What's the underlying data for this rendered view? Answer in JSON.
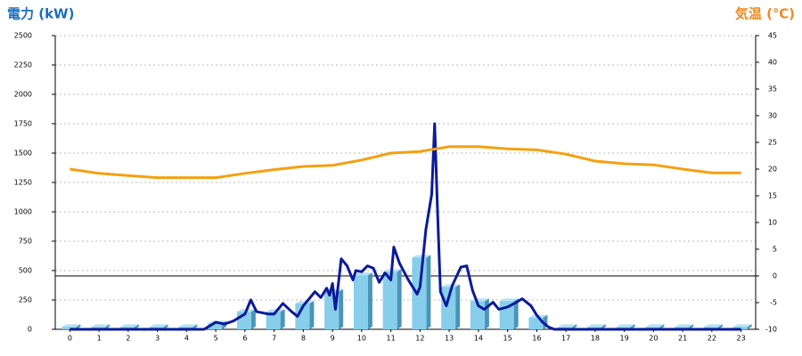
{
  "chart_data": {
    "type": "combo",
    "y_title": "電力 (kW)",
    "y2_title": "気温 (℃)",
    "categories": [
      "0",
      "1",
      "2",
      "3",
      "4",
      "5",
      "6",
      "7",
      "8",
      "9",
      "10",
      "11",
      "12",
      "13",
      "14",
      "15",
      "16",
      "17",
      "18",
      "19",
      "20",
      "21",
      "22",
      "23"
    ],
    "ylim": [
      0,
      2500
    ],
    "yticks": [
      0,
      250,
      500,
      750,
      1000,
      1250,
      1500,
      1750,
      2000,
      2250,
      2500
    ],
    "y2lim": [
      -10,
      45
    ],
    "y2ticks": [
      -10,
      -5,
      0,
      5,
      10,
      15,
      20,
      25,
      30,
      35,
      40,
      45
    ],
    "grid": true,
    "series": [
      {
        "type": "bar",
        "color": "#87ceeb",
        "values": [
          20,
          20,
          20,
          20,
          20,
          50,
          150,
          150,
          220,
          320,
          460,
          490,
          610,
          360,
          240,
          240,
          100,
          20,
          20,
          20,
          20,
          20,
          20,
          20
        ]
      },
      {
        "type": "line",
        "color": "#0a1a9a",
        "x": [
          0,
          1,
          2,
          3,
          4,
          4.6,
          5.0,
          5.3,
          5.6,
          6.0,
          6.2,
          6.4,
          6.8,
          7.0,
          7.3,
          7.6,
          7.8,
          8.0,
          8.2,
          8.4,
          8.6,
          8.8,
          8.9,
          9.0,
          9.1,
          9.3,
          9.5,
          9.7,
          9.8,
          10.0,
          10.2,
          10.4,
          10.6,
          10.8,
          11.0,
          11.1,
          11.3,
          11.6,
          11.9,
          12.0,
          12.2,
          12.4,
          12.5,
          12.6,
          12.7,
          12.9,
          13.1,
          13.4,
          13.6,
          13.8,
          14.0,
          14.2,
          14.5,
          14.7,
          15.0,
          15.3,
          15.5,
          15.8,
          16.0,
          16.2,
          16.4,
          16.6,
          17,
          18,
          19,
          20,
          21,
          22,
          23
        ],
        "values": [
          0,
          0,
          0,
          0,
          0,
          0,
          60,
          45,
          70,
          130,
          250,
          150,
          130,
          130,
          220,
          150,
          110,
          200,
          260,
          320,
          270,
          350,
          290,
          390,
          170,
          600,
          540,
          420,
          500,
          490,
          540,
          520,
          400,
          480,
          420,
          700,
          560,
          420,
          300,
          360,
          850,
          1150,
          1750,
          1000,
          320,
          200,
          370,
          530,
          540,
          330,
          200,
          170,
          230,
          170,
          190,
          230,
          260,
          200,
          120,
          60,
          20,
          0,
          0,
          0,
          0,
          0,
          0,
          0,
          0
        ]
      },
      {
        "type": "line",
        "axis": "y2",
        "color": "#f5a010",
        "values": [
          20,
          19.2,
          18.8,
          18.4,
          18.4,
          18.4,
          19.2,
          19.9,
          20.5,
          20.7,
          21.7,
          23.0,
          23.3,
          24.2,
          24.2,
          23.8,
          23.6,
          22.8,
          21.5,
          21.0,
          20.8,
          20.0,
          19.3,
          19.3
        ]
      }
    ]
  }
}
